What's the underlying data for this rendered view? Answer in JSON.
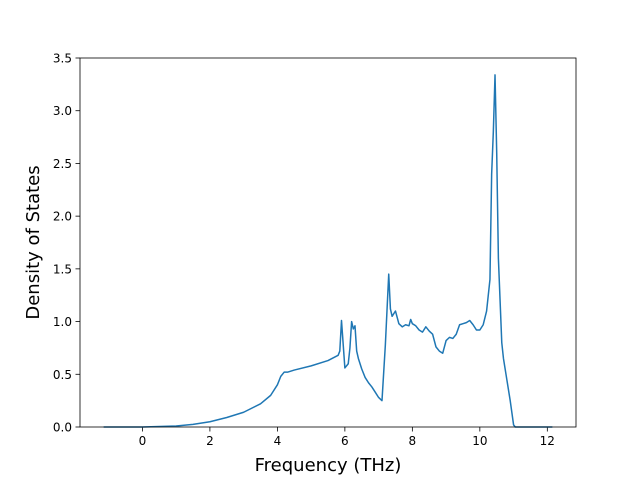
{
  "chart_data": {
    "type": "line",
    "title": "",
    "xlabel": "Frequency (THz)",
    "ylabel": "Density of States",
    "xlim": [
      -1.85,
      12.85
    ],
    "ylim": [
      0,
      3.5
    ],
    "grid": false,
    "xticks": [
      0,
      2,
      4,
      6,
      8,
      10,
      12
    ],
    "xtick_labels": [
      "0",
      "2",
      "4",
      "6",
      "8",
      "10",
      "12"
    ],
    "yticks": [
      0.0,
      0.5,
      1.0,
      1.5,
      2.0,
      2.5,
      3.0,
      3.5
    ],
    "ytick_labels": [
      "0.0",
      "0.5",
      "1.0",
      "1.5",
      "2.0",
      "2.5",
      "3.0",
      "3.5"
    ],
    "line_color": "#1f77b4",
    "series": [
      {
        "x": [
          -1.15,
          -0.5,
          0,
          0.5,
          1,
          1.5,
          2,
          2.5,
          3,
          3.5,
          3.8,
          4.0,
          4.1,
          4.2,
          4.3,
          4.5,
          5.0,
          5.5,
          5.8,
          5.85,
          5.9,
          6.0,
          6.1,
          6.15,
          6.2,
          6.25,
          6.3,
          6.35,
          6.4,
          6.5,
          6.6,
          6.7,
          6.8,
          6.9,
          7.0,
          7.1,
          7.2,
          7.3,
          7.35,
          7.4,
          7.5,
          7.6,
          7.7,
          7.8,
          7.9,
          7.95,
          8.0,
          8.1,
          8.2,
          8.3,
          8.4,
          8.5,
          8.6,
          8.7,
          8.8,
          8.9,
          9.0,
          9.1,
          9.2,
          9.3,
          9.4,
          9.5,
          9.6,
          9.7,
          9.8,
          9.9,
          10.0,
          10.1,
          10.2,
          10.3,
          10.35,
          10.4,
          10.45,
          10.5,
          10.55,
          10.6,
          10.65,
          10.7,
          10.8,
          10.9,
          11.0,
          11.05,
          11.1,
          11.5,
          12.0,
          12.15
        ],
        "y": [
          0.0,
          0.0,
          0.0,
          0.005,
          0.01,
          0.025,
          0.05,
          0.09,
          0.14,
          0.22,
          0.3,
          0.4,
          0.48,
          0.52,
          0.52,
          0.54,
          0.58,
          0.63,
          0.68,
          0.72,
          1.01,
          0.56,
          0.6,
          0.75,
          1.0,
          0.93,
          0.96,
          0.72,
          0.65,
          0.55,
          0.47,
          0.42,
          0.38,
          0.33,
          0.28,
          0.25,
          0.78,
          1.45,
          1.12,
          1.05,
          1.1,
          0.98,
          0.95,
          0.97,
          0.96,
          1.02,
          0.98,
          0.96,
          0.92,
          0.9,
          0.95,
          0.91,
          0.88,
          0.76,
          0.72,
          0.7,
          0.82,
          0.85,
          0.84,
          0.88,
          0.97,
          0.98,
          0.99,
          1.01,
          0.97,
          0.92,
          0.92,
          0.97,
          1.1,
          1.4,
          2.4,
          2.8,
          3.34,
          2.6,
          1.6,
          1.2,
          0.8,
          0.65,
          0.45,
          0.25,
          0.02,
          0.0,
          0.0,
          0.0,
          0.0,
          0.0
        ]
      }
    ]
  }
}
